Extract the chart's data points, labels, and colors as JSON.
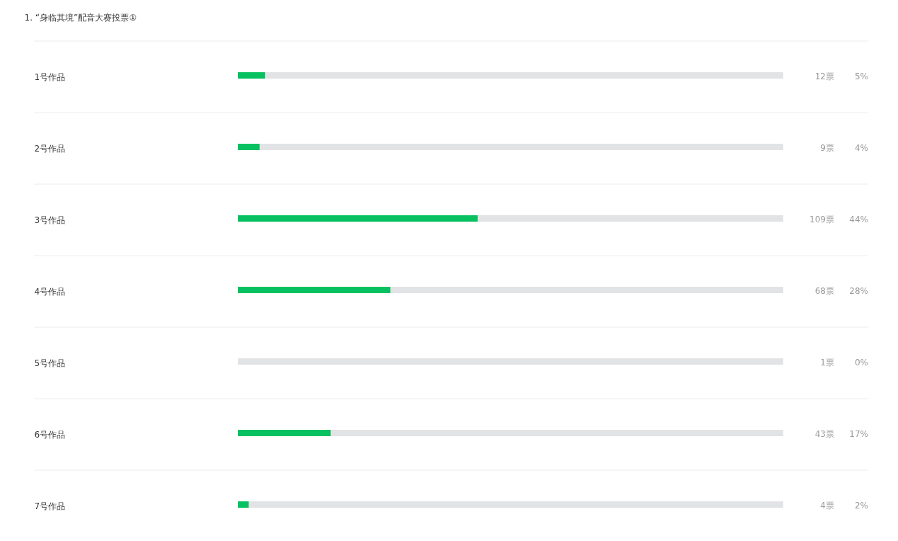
{
  "chart_data": {
    "type": "bar",
    "orientation": "horizontal",
    "stacked": true,
    "title": "1. “身临其境”配音大赛投票①",
    "categories": [
      "1号作品",
      "2号作品",
      "3号作品",
      "4号作品",
      "5号作品",
      "6号作品",
      "7号作品"
    ],
    "series": [
      {
        "color": "#07c160",
        "values": [
          5,
          4,
          44,
          28,
          0,
          17,
          2
        ],
        "value_labels": [
          "5%",
          "4%",
          "44%",
          "28%",
          "0%",
          "17%",
          "2%"
        ]
      },
      {
        "color": "#e1e3e5",
        "values": [
          95,
          96,
          56,
          72,
          100,
          83,
          98
        ]
      }
    ],
    "annotations": [
      "12票",
      "9票",
      "109票",
      "68票",
      "1票",
      "43票",
      "4票"
    ],
    "xlim": [
      0,
      100
    ],
    "tick_labels": "y",
    "grid": "y",
    "legend": false
  }
}
